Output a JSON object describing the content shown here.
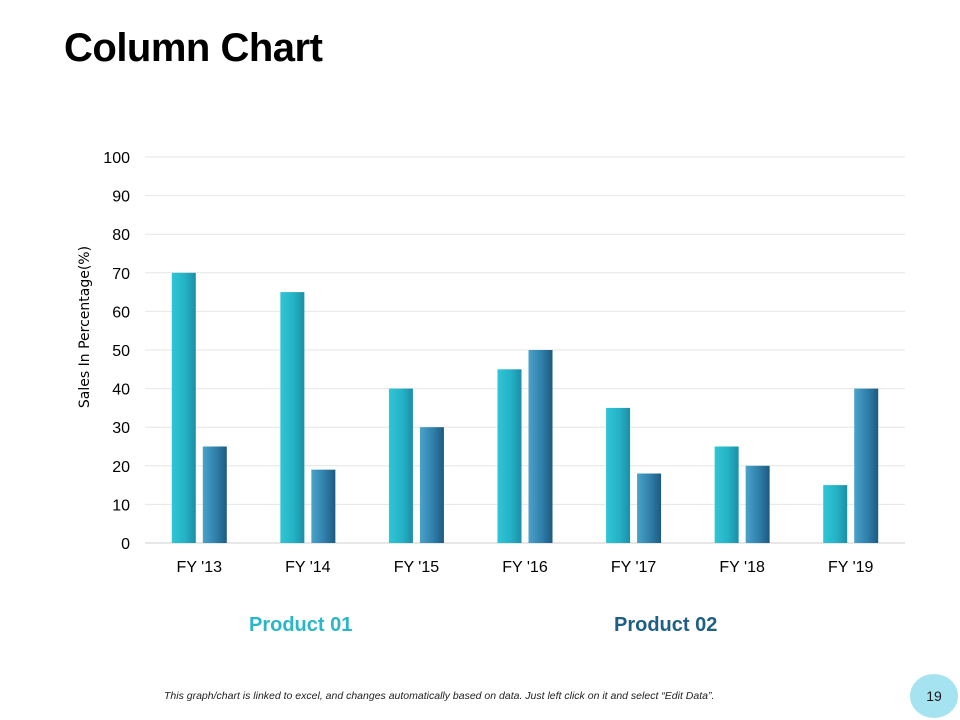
{
  "title": "Column Chart",
  "footnote": "This graph/chart is linked to excel, and changes automatically based on data. Just left click on it and select “Edit Data”.",
  "page_number": "19",
  "colors": {
    "product_01": "#25b5c9",
    "product_02": "#2e7ea8",
    "legend_01": "#2bb6c8",
    "legend_02": "#1f5f86",
    "grid": "#e6e6e6"
  },
  "chart_data": {
    "type": "bar",
    "title": "",
    "xlabel": "",
    "ylabel": "Sales In Percentage(%)",
    "ylim": [
      0,
      100
    ],
    "yticks": [
      0,
      10,
      20,
      30,
      40,
      50,
      60,
      70,
      80,
      90,
      100
    ],
    "categories": [
      "FY '13",
      "FY '14",
      "FY '15",
      "FY '16",
      "FY '17",
      "FY '18",
      "FY '19"
    ],
    "series": [
      {
        "name": "Product 01",
        "values": [
          70,
          65,
          40,
          45,
          35,
          25,
          15
        ]
      },
      {
        "name": "Product 02",
        "values": [
          25,
          19,
          30,
          50,
          18,
          20,
          40
        ]
      }
    ],
    "grid": true,
    "legend": "bottom"
  }
}
